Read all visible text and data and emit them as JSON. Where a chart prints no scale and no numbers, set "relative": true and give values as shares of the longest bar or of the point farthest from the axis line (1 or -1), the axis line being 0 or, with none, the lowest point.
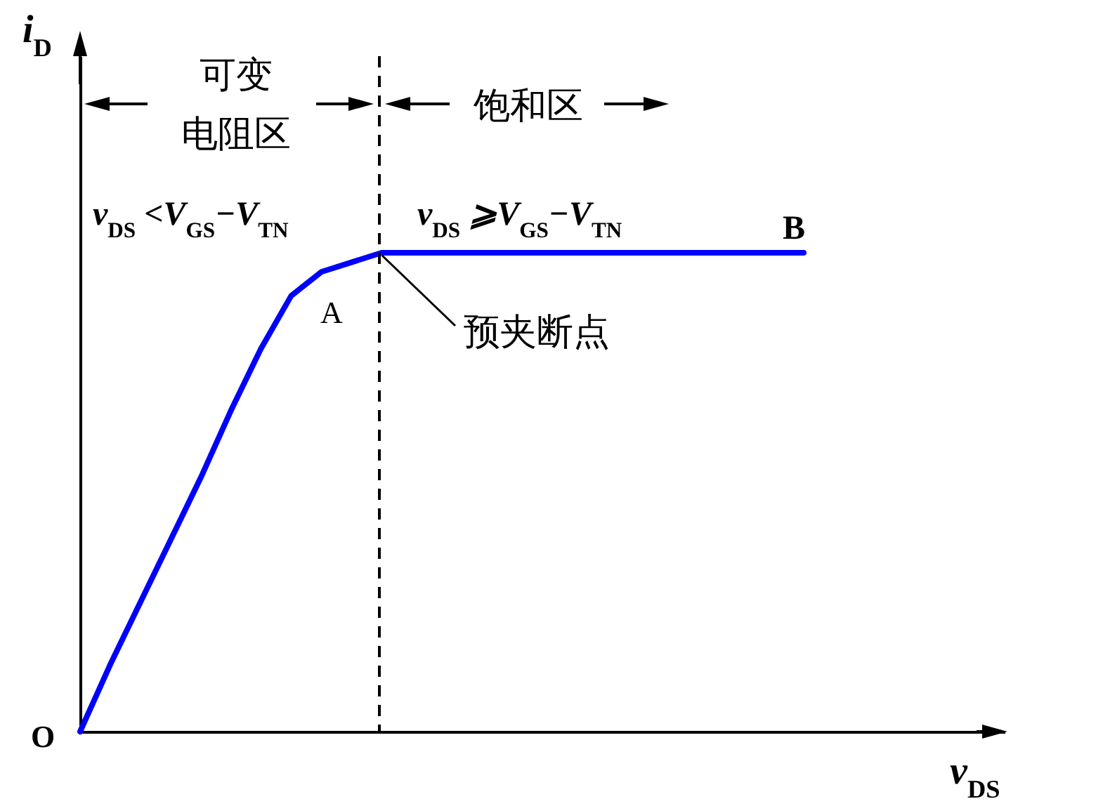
{
  "chart_data": {
    "type": "line",
    "relative": true,
    "xlabel": "v$_{DS}$",
    "ylabel": "i$_{D}$",
    "categories": [
      null,
      null,
      null,
      null,
      null,
      null,
      null,
      null,
      null,
      null,
      null,
      null,
      null,
      null,
      null,
      null,
      null,
      null,
      null,
      null,
      null,
      null,
      null,
      null,
      null
    ],
    "series": [
      {
        "color": "#0000ff",
        "values": [
          0,
          0.14,
          0.27,
          0.4,
          0.53,
          0.67,
          0.8,
          0.91,
          0.96,
          0.98,
          1,
          1,
          1,
          1,
          1,
          1,
          1,
          1,
          1,
          1,
          1,
          1,
          1,
          1,
          1
        ]
      }
    ],
    "annotations": [
      "可变",
      "电阻区",
      "饱和区",
      "v$_{DS}$ <V$_{GS}$−V$_{TN}$",
      "v$_{DS}$ ⩾V$_{GS}$−V$_{TN}$",
      "A",
      "B",
      "预夹断点",
      "O"
    ],
    "grid": false,
    "marker": "none",
    "line_style": "solid"
  }
}
